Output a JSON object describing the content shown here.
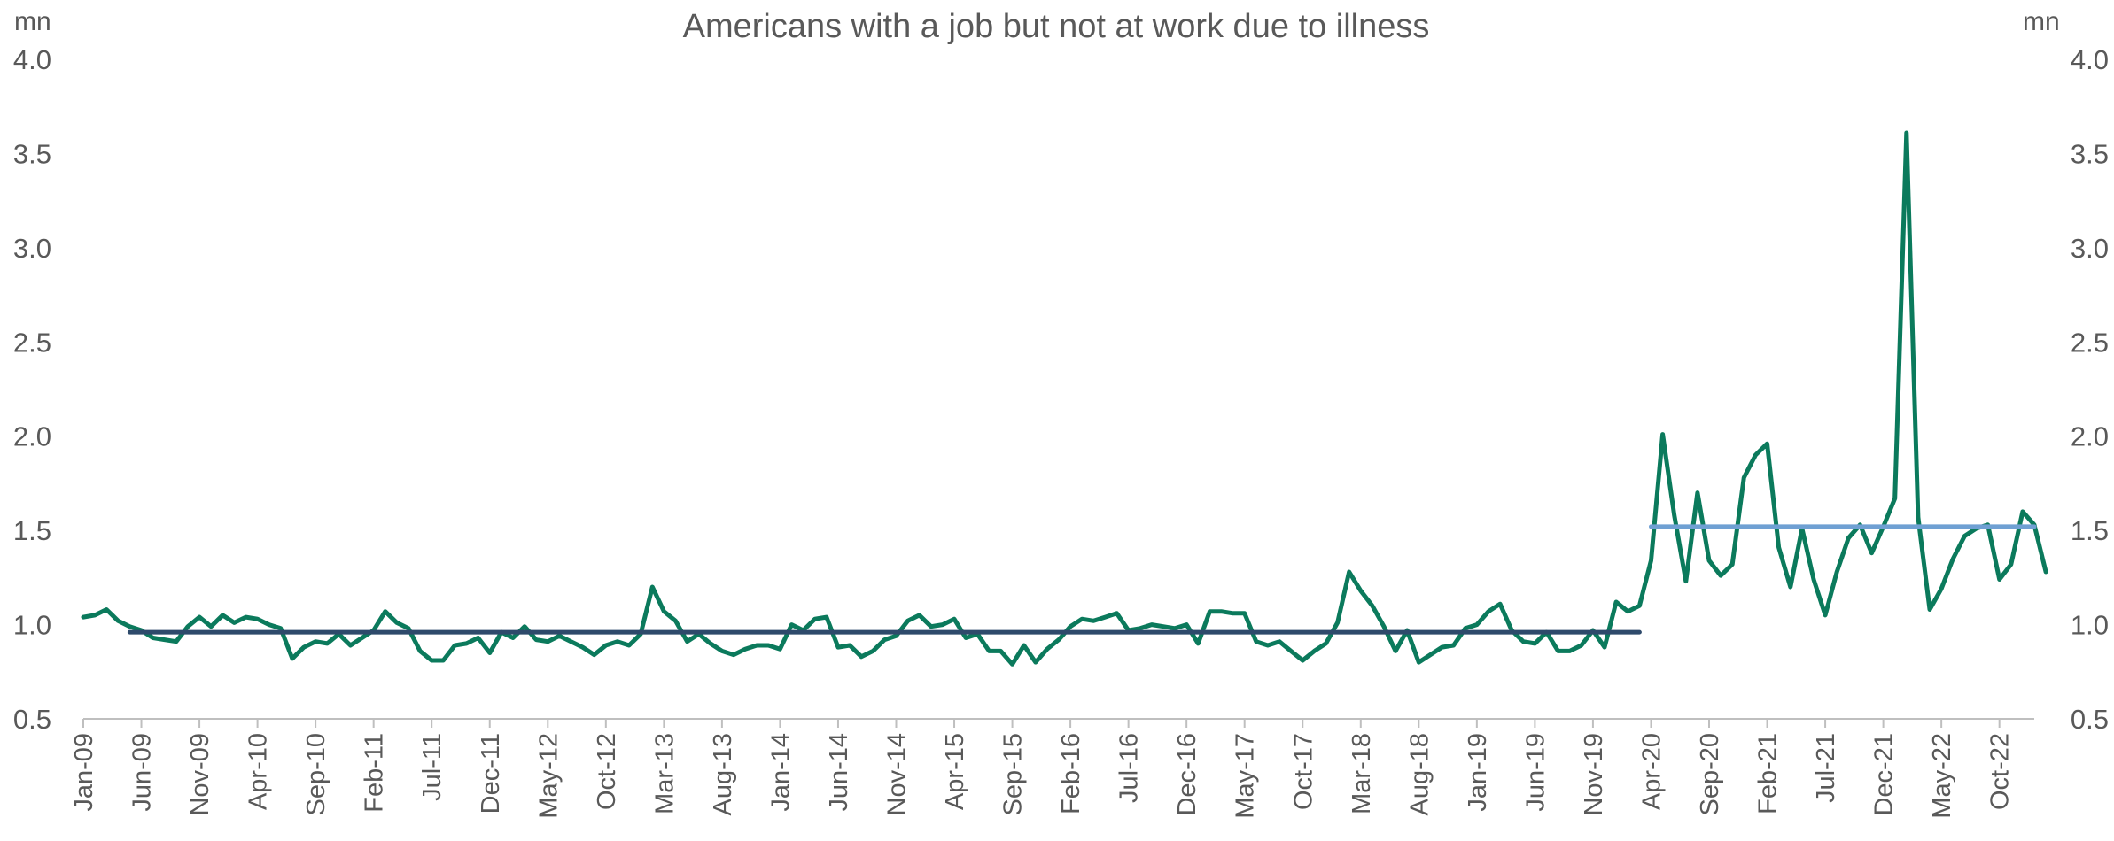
{
  "chart_data": {
    "type": "line",
    "title": "Americans with a job but not at work due to illness",
    "y_unit_left": "mn",
    "y_unit_right": "mn",
    "ylim": [
      0.5,
      4.0
    ],
    "yticks": [
      "0.5",
      "1.0",
      "1.5",
      "2.0",
      "2.5",
      "3.0",
      "3.5",
      "4.0"
    ],
    "x_range": [
      "Jan-09",
      "Jan-23"
    ],
    "x_tick_labels": [
      "Jan-09",
      "Jun-09",
      "Nov-09",
      "Apr-10",
      "Sep-10",
      "Feb-11",
      "Jul-11",
      "Dec-11",
      "May-12",
      "Oct-12",
      "Mar-13",
      "Aug-13",
      "Jan-14",
      "Jun-14",
      "Nov-14",
      "Apr-15",
      "Sep-15",
      "Feb-16",
      "Jul-16",
      "Dec-16",
      "May-17",
      "Oct-17",
      "Mar-18",
      "Aug-18",
      "Jan-19",
      "Jun-19",
      "Nov-19",
      "Apr-20",
      "Sep-20",
      "Feb-21",
      "Jul-21",
      "Dec-21",
      "May-22",
      "Oct-22"
    ],
    "grid": false,
    "legend": "none",
    "series": [
      {
        "color": "#0b7a5c",
        "x_start": "Jan-09",
        "values": [
          1.04,
          1.05,
          1.08,
          1.02,
          0.99,
          0.97,
          0.93,
          0.92,
          0.91,
          0.99,
          1.04,
          0.99,
          1.05,
          1.01,
          1.04,
          1.03,
          1.0,
          0.98,
          0.82,
          0.88,
          0.91,
          0.9,
          0.95,
          0.89,
          0.93,
          0.97,
          1.07,
          1.01,
          0.98,
          0.86,
          0.81,
          0.81,
          0.89,
          0.9,
          0.93,
          0.85,
          0.96,
          0.93,
          0.99,
          0.92,
          0.91,
          0.94,
          0.91,
          0.88,
          0.84,
          0.89,
          0.91,
          0.89,
          0.95,
          1.2,
          1.07,
          1.02,
          0.91,
          0.95,
          0.9,
          0.86,
          0.84,
          0.87,
          0.89,
          0.89,
          0.87,
          1.0,
          0.97,
          1.03,
          1.04,
          0.88,
          0.89,
          0.83,
          0.86,
          0.92,
          0.94,
          1.02,
          1.05,
          0.99,
          1.0,
          1.03,
          0.93,
          0.95,
          0.86,
          0.86,
          0.79,
          0.89,
          0.8,
          0.87,
          0.92,
          0.99,
          1.03,
          1.02,
          1.04,
          1.06,
          0.97,
          0.98,
          1.0,
          0.99,
          0.98,
          1.0,
          0.9,
          1.07,
          1.07,
          1.06,
          1.06,
          0.91,
          0.89,
          0.91,
          0.86,
          0.81,
          0.86,
          0.9,
          1.01,
          1.28,
          1.18,
          1.1,
          0.99,
          0.86,
          0.97,
          0.8,
          0.84,
          0.88,
          0.89,
          0.98,
          1.0,
          1.07,
          1.11,
          0.97,
          0.91,
          0.9,
          0.96,
          0.86,
          0.86,
          0.89,
          0.97,
          0.88,
          1.12,
          1.07,
          1.1,
          1.34,
          2.01,
          1.58,
          1.23,
          1.7,
          1.34,
          1.26,
          1.32,
          1.78,
          1.9,
          1.96,
          1.41,
          1.2,
          1.51,
          1.24,
          1.05,
          1.28,
          1.46,
          1.53,
          1.38,
          1.52,
          1.67,
          3.61,
          1.57,
          1.08,
          1.19,
          1.35,
          1.47,
          1.51,
          1.53,
          1.24,
          1.32,
          1.6,
          1.53,
          1.28
        ]
      },
      {
        "color": "#2e4a6b",
        "x_start": "May-09",
        "x_end": "Mar-20",
        "values": [
          0.96,
          0.96
        ]
      },
      {
        "color": "#6fa0d3",
        "x_start": "Apr-20",
        "x_end": "Jan-23",
        "values": [
          1.52,
          1.52
        ]
      }
    ]
  }
}
